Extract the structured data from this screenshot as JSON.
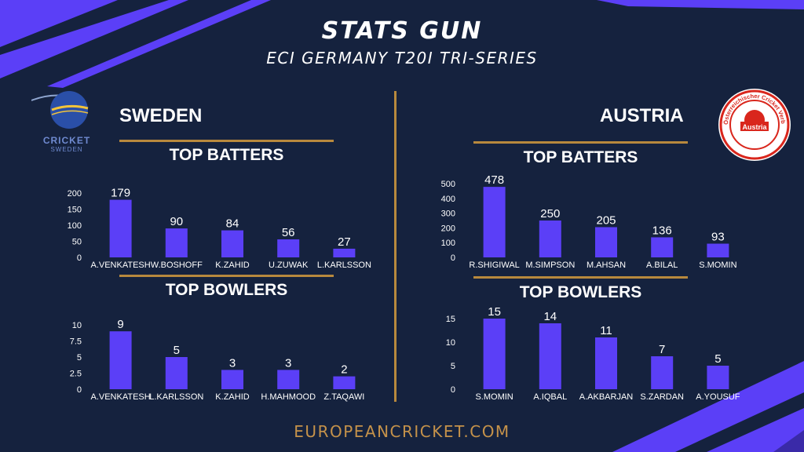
{
  "header": {
    "title": "STATS GUN",
    "subtitle": "ECI GERMANY T20I TRI-SERIES"
  },
  "footer": {
    "text": "EUROPEANCRICKET.COM"
  },
  "colors": {
    "background": "#15223e",
    "bar": "#5b3ff7",
    "accent": "#b8893d",
    "stripe": "#5b3ff7",
    "text": "#ffffff"
  },
  "sweden": {
    "name": "SWEDEN",
    "logo_text": "CRICKET",
    "logo_subtext": "SWEDEN",
    "batters_heading": "TOP BATTERS",
    "bowlers_heading": "TOP BOWLERS"
  },
  "austria": {
    "name": "AUSTRIA",
    "logo_text": "Austria",
    "logo_ring_text": "Österreichischer Cricket Verband",
    "batters_heading": "TOP BATTERS",
    "bowlers_heading": "TOP BOWLERS"
  },
  "chart_data": [
    {
      "id": "sweden-batters",
      "type": "bar",
      "categories": [
        "A.VENKATESH",
        "W.BOSHOFF",
        "K.ZAHID",
        "U.ZUWAK",
        "L.KARLSSON"
      ],
      "values": [
        179,
        90,
        84,
        56,
        27
      ],
      "title": "TOP BATTERS",
      "ylim": [
        0,
        200
      ],
      "yticks": [
        0,
        50,
        100,
        150,
        200
      ],
      "grid": false
    },
    {
      "id": "sweden-bowlers",
      "type": "bar",
      "categories": [
        "A.VENKATESH",
        "L.KARLSSON",
        "K.ZAHID",
        "H.MAHMOOD",
        "Z.TAQAWI"
      ],
      "values": [
        9,
        5,
        3,
        3,
        2
      ],
      "title": "TOP BOWLERS",
      "ylim": [
        0,
        10
      ],
      "yticks": [
        0,
        2.5,
        5,
        7.5,
        10
      ],
      "grid": false
    },
    {
      "id": "austria-batters",
      "type": "bar",
      "categories": [
        "R.SHIGIWAL",
        "M.SIMPSON",
        "M.AHSAN",
        "A.BILAL",
        "S.MOMIN"
      ],
      "values": [
        478,
        250,
        205,
        136,
        93
      ],
      "title": "TOP BATTERS",
      "ylim": [
        0,
        500
      ],
      "yticks": [
        0,
        100,
        200,
        300,
        400,
        500
      ],
      "grid": false
    },
    {
      "id": "austria-bowlers",
      "type": "bar",
      "categories": [
        "S.MOMIN",
        "A.IQBAL",
        "A.AKBARJAN",
        "S.ZARDAN",
        "A.YOUSUF"
      ],
      "values": [
        15,
        14,
        11,
        7,
        5
      ],
      "title": "TOP BOWLERS",
      "ylim": [
        0,
        15
      ],
      "yticks": [
        0,
        5,
        10,
        15
      ],
      "grid": false
    }
  ]
}
